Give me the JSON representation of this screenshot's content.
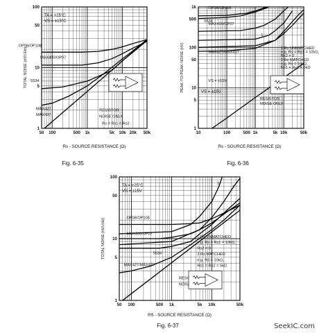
{
  "watermark": "SeekIC.com",
  "chart_data": [
    {
      "type": "line",
      "scale": "log-log",
      "caption": "Fig. 6-35",
      "xlabel": "Rs - SOURCE RESISTANCE (Ω)",
      "ylabel": "TOTAL NOISE (nV/√Hz)",
      "xlim": [
        50,
        50000
      ],
      "ylim": [
        1,
        100
      ],
      "xticks": [
        {
          "v": 50,
          "l": "50"
        },
        {
          "v": 100,
          "l": "100"
        },
        {
          "v": 500,
          "l": "500"
        },
        {
          "v": 1000,
          "l": "1k"
        },
        {
          "v": 5000,
          "l": "5k"
        },
        {
          "v": 10000,
          "l": "10k"
        },
        {
          "v": 20000,
          "l": "20k"
        },
        {
          "v": 50000,
          "l": "50k"
        }
      ],
      "yticks": [
        {
          "v": 1,
          "l": "1"
        },
        {
          "v": 5,
          "l": "5"
        },
        {
          "v": 10,
          "l": "10"
        },
        {
          "v": 50,
          "l": "50"
        },
        {
          "v": 100,
          "l": "100"
        }
      ],
      "conditions": [
        "TA = +25°C",
        "VS = ±15°C"
      ],
      "series": [
        {
          "name": "OP08/OP108",
          "x": [
            50,
            700,
            2000,
            5000,
            10000,
            20000,
            50000
          ],
          "y": [
            18,
            18,
            18.5,
            20,
            22,
            25,
            29
          ]
        },
        {
          "name": "MAX400/OP07",
          "x": [
            50,
            700,
            2000,
            5000,
            10000,
            20000,
            50000
          ],
          "y": [
            11,
            11,
            12,
            14,
            17,
            21,
            27
          ]
        },
        {
          "name": "5534",
          "x": [
            50,
            200,
            1000,
            5000,
            10000,
            20000,
            50000
          ],
          "y": [
            4.5,
            4.8,
            6,
            9,
            13,
            18,
            28
          ]
        },
        {
          "name": "MAX427/MAX437",
          "x": [
            50,
            100,
            300,
            1000,
            3000,
            10000,
            20000,
            50000
          ],
          "y": [
            2.4,
            2.6,
            3.4,
            5,
            8,
            14,
            19,
            29
          ]
        },
        {
          "name": "RESISTOR NOISE ONLY",
          "x": [
            50,
            100,
            1000,
            10000,
            50000
          ],
          "y": [
            0.91,
            1.29,
            4.07,
            12.9,
            28.8
          ]
        }
      ],
      "annotations": [
        "OP08/OP108",
        "MAX400/OP07",
        "5534",
        "MAX427",
        "MAX437",
        "RESISTOR",
        "NOISE ONLY",
        "Rs = Rs1 = Rs2",
        "Rs1",
        "Rs2"
      ]
    },
    {
      "type": "line",
      "scale": "log-log",
      "caption": "Fig. 6-36",
      "xlabel": "Rs - SOURCE RESISTANCE (Ω)",
      "ylabel": "PEAK-TO-PEAK NOISE (nV)",
      "xlim": [
        10,
        50000
      ],
      "ylim": [
        1,
        1000
      ],
      "xticks": [
        {
          "v": 10,
          "l": "10"
        },
        {
          "v": 100,
          "l": "100"
        },
        {
          "v": 500,
          "l": "500"
        },
        {
          "v": 1000,
          "l": "1k"
        },
        {
          "v": 5000,
          "l": "5k"
        },
        {
          "v": 10000,
          "l": "10k"
        },
        {
          "v": 50000,
          "l": "50k"
        }
      ],
      "yticks": [
        {
          "v": 1,
          "l": "1"
        },
        {
          "v": 5,
          "l": "5"
        },
        {
          "v": 10,
          "l": "10"
        },
        {
          "v": 50,
          "l": "50"
        },
        {
          "v": 100,
          "l": "100"
        },
        {
          "v": 500,
          "l": "500"
        },
        {
          "v": 1000,
          "l": "1k"
        }
      ],
      "conditions": [
        "VS = ±15V"
      ],
      "series": [
        {
          "name": "OP08/OP108",
          "x": [
            10,
            100,
            500,
            1000,
            2000,
            3000
          ],
          "y": [
            600,
            620,
            700,
            800,
            950,
            1000
          ]
        },
        {
          "name": "MAX400/OP07",
          "x": [
            10,
            300,
            1000,
            2000,
            5000,
            10000,
            14000
          ],
          "y": [
            250,
            260,
            300,
            350,
            500,
            800,
            1000
          ]
        },
        {
          "name": "5534",
          "x": [
            10,
            100,
            300,
            1000,
            3000
          ],
          "y": [
            520,
            550,
            600,
            750,
            1000
          ]
        },
        {
          "name": "MAX427/MAX437",
          "x": [
            10,
            100,
            1000,
            5000,
            10000,
            30000,
            50000
          ],
          "y": [
            80,
            82,
            95,
            150,
            250,
            600,
            850
          ]
        },
        {
          "name": "1",
          "x": [
            10,
            1000,
            3000,
            5000,
            10000,
            20000
          ],
          "y": [
            150,
            160,
            200,
            260,
            400,
            800
          ]
        },
        {
          "name": "2",
          "x": [
            10,
            1000,
            5000,
            10000,
            20000,
            50000
          ],
          "y": [
            100,
            110,
            150,
            220,
            350,
            700
          ]
        },
        {
          "name": "RESISTOR NOISE ONLY",
          "x": [
            30,
            100,
            1000,
            10000,
            50000
          ],
          "y": [
            1,
            1.8,
            5.8,
            18,
            40
          ]
        }
      ],
      "annotations": [
        "OP08/OP108",
        "MAX400/OP07",
        "5534",
        "MAX427/MAX437",
        "1",
        "2",
        "VS = ±15V",
        "RESISTOR",
        "NOISE ONLY",
        "1 Rs UNMATCHED",
        "e.g. Rs = Rs1 = 10kΩ,",
        "Rs2 = 0",
        "2 Rs MATCHED",
        "e.g. Rs = 10kΩ,",
        "Rs1 = Rs2 = 5kΩ",
        "Rs1",
        "Rs2"
      ]
    },
    {
      "type": "line",
      "scale": "log-log",
      "caption": "Fig. 6-37",
      "xlabel": "RS - SOURCE RESISTANCE (Ω)",
      "ylabel": "TOTAL NOISE (nV/√Hz)",
      "xlim": [
        50,
        50000
      ],
      "ylim": [
        1,
        100
      ],
      "xticks": [
        {
          "v": 50,
          "l": "50"
        },
        {
          "v": 100,
          "l": "100"
        },
        {
          "v": 500,
          "l": "500"
        },
        {
          "v": 1000,
          "l": "1k"
        },
        {
          "v": 5000,
          "l": "5k"
        },
        {
          "v": 10000,
          "l": "10k"
        },
        {
          "v": 50000,
          "l": "50k"
        }
      ],
      "yticks": [
        {
          "v": 1,
          "l": "1"
        },
        {
          "v": 5,
          "l": "5"
        },
        {
          "v": 10,
          "l": "10"
        },
        {
          "v": 50,
          "l": "50"
        },
        {
          "v": 100,
          "l": "100"
        }
      ],
      "conditions": [
        "TA = +25°C",
        "VS = ±15V"
      ],
      "series": [
        {
          "name": "OP08/OP108",
          "x": [
            50,
            1000,
            3000,
            5000,
            10000,
            20000,
            50000
          ],
          "y": [
            17,
            17,
            17.5,
            18,
            21,
            26,
            35
          ]
        },
        {
          "name": "MAX400/OP07",
          "x": [
            50,
            500,
            1000,
            3000,
            5000,
            10000,
            20000,
            50000
          ],
          "y": [
            10,
            10,
            10.5,
            12,
            14,
            18,
            25,
            38
          ]
        },
        {
          "name": "5534",
          "x": [
            50,
            500,
            1000,
            3000,
            5000,
            10000,
            20000,
            50000
          ],
          "y": [
            7,
            7,
            7.5,
            9,
            12,
            17,
            26,
            45
          ]
        },
        {
          "name": "MAX427/MAX437",
          "x": [
            50,
            100,
            300,
            1000,
            3000,
            10000,
            20000,
            50000
          ],
          "y": [
            2.8,
            3,
            3.6,
            5,
            8,
            14,
            20,
            35
          ]
        },
        {
          "name": "1",
          "x": [
            50,
            1000,
            3000,
            5000,
            10000,
            15000,
            18000
          ],
          "y": [
            12,
            13,
            17,
            23,
            40,
            70,
            100
          ]
        },
        {
          "name": "2",
          "x": [
            50,
            1000,
            5000,
            10000,
            20000,
            35000,
            50000
          ],
          "y": [
            8,
            9,
            14,
            22,
            40,
            70,
            95
          ]
        },
        {
          "name": "RESISTOR NOISE ONLY",
          "x": [
            50,
            100,
            1000,
            10000,
            50000
          ],
          "y": [
            0.91,
            1.29,
            4.07,
            12.9,
            28.8
          ]
        }
      ],
      "annotations": [
        "OP08/OP108",
        "MAX400/OP07",
        "5534",
        "MAX427/MAX437",
        "1",
        "2",
        "RESISTOR",
        "NOISE ONLY",
        "1 Rs UNMATCHED",
        "e.g. Rs = Rs1 = 10kΩ,",
        "Rs2 = 0",
        "2 Rs MATCHED",
        "e.g. Rs = 10kΩ,",
        "Rs1 = Rs2 = 5kΩ",
        "Rs1",
        "Rs2"
      ]
    }
  ]
}
